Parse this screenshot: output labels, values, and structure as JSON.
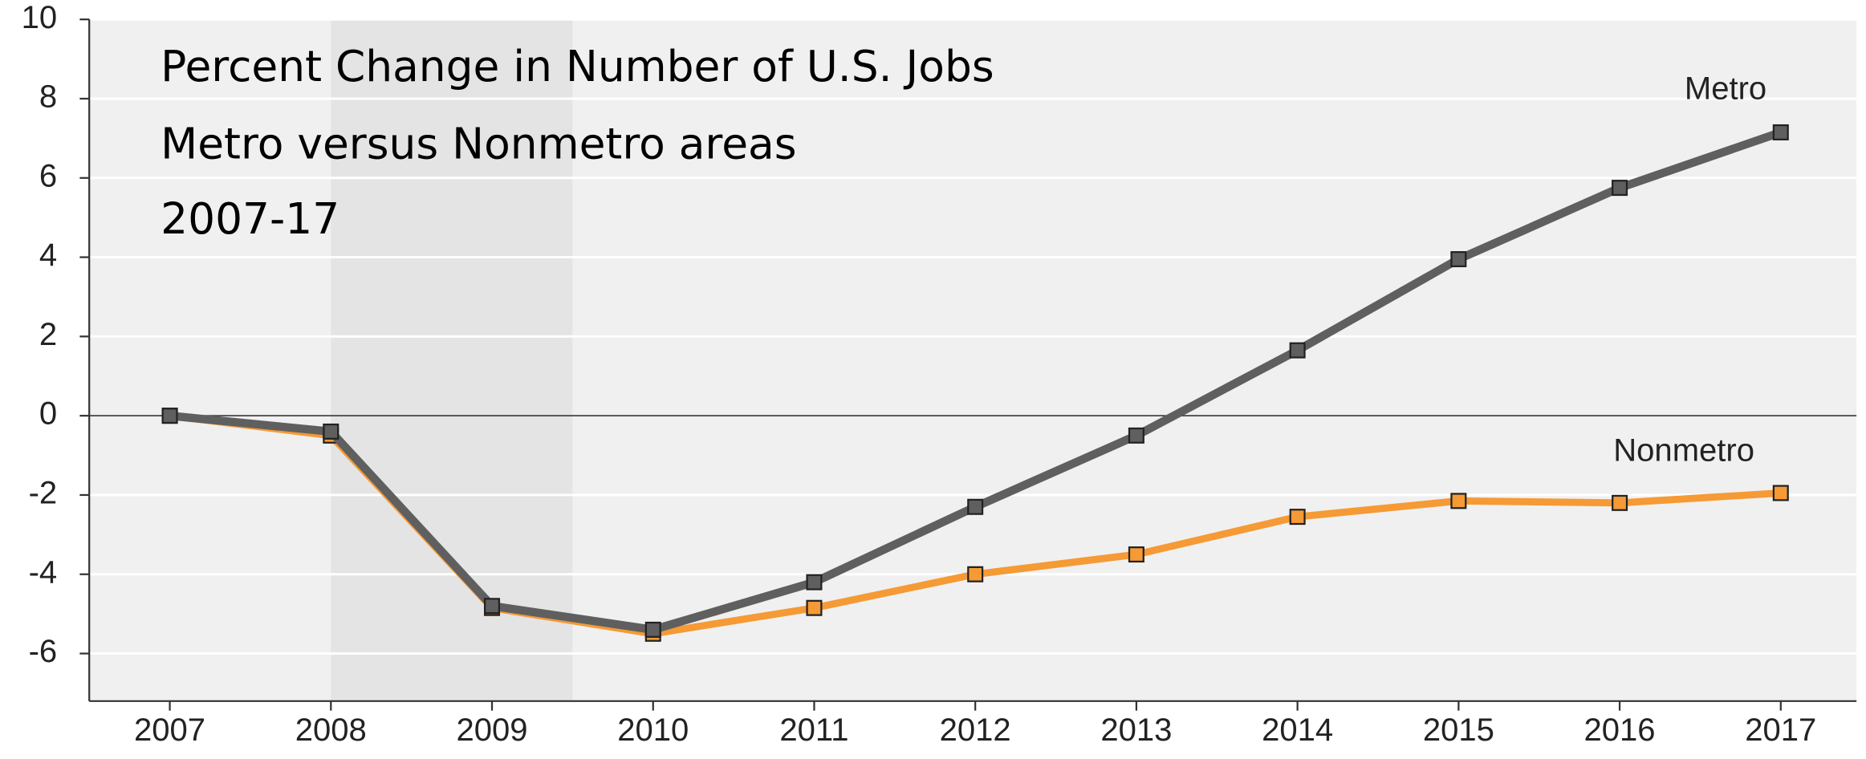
{
  "chart_data": {
    "type": "line",
    "title": [
      "Percent Change in Number of U.S. Jobs",
      "Metro versus Nonmetro areas",
      "2007-17"
    ],
    "x": [
      2007,
      2008,
      2009,
      2010,
      2011,
      2012,
      2013,
      2014,
      2015,
      2016,
      2017
    ],
    "series": [
      {
        "name": "Metro",
        "color": "#5f5f5f",
        "values": [
          0,
          -0.4,
          -4.8,
          -5.4,
          -4.2,
          -2.3,
          -0.5,
          1.65,
          3.95,
          5.75,
          7.15
        ]
      },
      {
        "name": "Nonmetro",
        "color": "#f59a35",
        "values": [
          0,
          -0.5,
          -4.85,
          -5.5,
          -4.85,
          -4.0,
          -3.5,
          -2.55,
          -2.15,
          -2.2,
          -1.95
        ]
      }
    ],
    "xlim": [
      2006.5,
      2017.47
    ],
    "xticks": [
      2007,
      2008,
      2009,
      2010,
      2011,
      2012,
      2013,
      2014,
      2015,
      2016,
      2017
    ],
    "ylim": [
      -7.2,
      10
    ],
    "yticks": [
      10,
      8,
      6,
      4,
      2,
      0,
      -2,
      -4,
      -6
    ],
    "shaded": [
      2008,
      2009.5
    ],
    "grid": true
  }
}
